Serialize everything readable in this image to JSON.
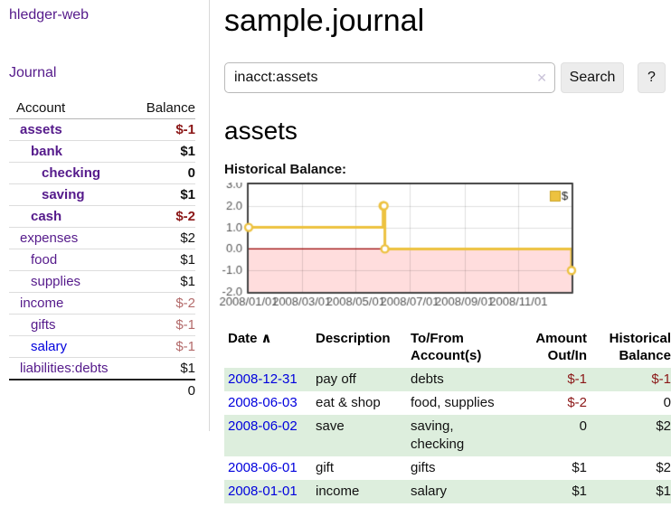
{
  "app": {
    "title": "hledger-web"
  },
  "sidebar": {
    "journal_link": "Journal",
    "accounts": {
      "header": {
        "account": "Account",
        "balance": "Balance"
      },
      "rows": [
        {
          "account": "assets",
          "indent": 1,
          "bold": true,
          "link_class": "purple",
          "balance": "$-1",
          "balance_class": "neg"
        },
        {
          "account": "bank",
          "indent": 2,
          "bold": true,
          "link_class": "purple",
          "balance": "$1",
          "balance_class": "pos"
        },
        {
          "account": "checking",
          "indent": 3,
          "bold": true,
          "link_class": "purple",
          "balance": "0",
          "balance_class": "pos"
        },
        {
          "account": "saving",
          "indent": 3,
          "bold": true,
          "link_class": "purple",
          "balance": "$1",
          "balance_class": "pos"
        },
        {
          "account": "cash",
          "indent": 2,
          "bold": true,
          "link_class": "purple",
          "balance": "$-2",
          "balance_class": "neg"
        },
        {
          "account": "expenses",
          "indent": 1,
          "bold": false,
          "link_class": "purple",
          "balance": "$2",
          "balance_class": "pos"
        },
        {
          "account": "food",
          "indent": 2,
          "bold": false,
          "link_class": "purple",
          "balance": "$1",
          "balance_class": "pos"
        },
        {
          "account": "supplies",
          "indent": 2,
          "bold": false,
          "link_class": "purple",
          "balance": "$1",
          "balance_class": "pos"
        },
        {
          "account": "income",
          "indent": 1,
          "bold": false,
          "link_class": "purple",
          "balance": "$-2",
          "balance_class": "neg-dim"
        },
        {
          "account": "gifts",
          "indent": 2,
          "bold": false,
          "link_class": "purple",
          "balance": "$-1",
          "balance_class": "neg-dim"
        },
        {
          "account": "salary",
          "indent": 2,
          "bold": false,
          "link_class": "blue",
          "balance": "$-1",
          "balance_class": "neg-dim"
        },
        {
          "account": "liabilities:debts",
          "indent": 1,
          "bold": false,
          "link_class": "purple",
          "balance": "$1",
          "balance_class": "pos"
        }
      ],
      "total": "0"
    }
  },
  "main": {
    "title": "sample.journal",
    "search": {
      "value": "inacct:assets",
      "clear_icon": "✕",
      "search_button": "Search",
      "help_button": "?"
    },
    "account_heading": "assets",
    "chart_label": "Historical Balance:",
    "register": {
      "columns": {
        "date": "Date",
        "description": "Description",
        "accounts": "To/From Account(s)",
        "amount": "Amount Out/In",
        "balance": "Historical Balance"
      },
      "sort_indicator": "∧",
      "rows": [
        {
          "date": "2008-12-31",
          "description": "pay off",
          "accounts": "debts",
          "amount": "$-1",
          "amount_class": "neg",
          "balance": "$-1",
          "balance_class": "neg",
          "stripe": true
        },
        {
          "date": "2008-06-03",
          "description": "eat & shop",
          "accounts": "food, supplies",
          "amount": "$-2",
          "amount_class": "neg",
          "balance": "0",
          "balance_class": "pos",
          "stripe": false
        },
        {
          "date": "2008-06-02",
          "description": "save",
          "accounts": "saving, checking",
          "amount": "0",
          "amount_class": "pos",
          "balance": "$2",
          "balance_class": "pos",
          "stripe": true
        },
        {
          "date": "2008-06-01",
          "description": "gift",
          "accounts": "gifts",
          "amount": "$1",
          "amount_class": "pos",
          "balance": "$2",
          "balance_class": "pos",
          "stripe": false
        },
        {
          "date": "2008-01-01",
          "description": "income",
          "accounts": "salary",
          "amount": "$1",
          "amount_class": "pos",
          "balance": "$1",
          "balance_class": "pos",
          "stripe": true
        }
      ]
    }
  },
  "chart_data": {
    "type": "line",
    "step": true,
    "title": "Historical Balance:",
    "ylabel": "",
    "xlabel": "",
    "ylim": [
      -2,
      3
    ],
    "y_ticks": [
      "3.0",
      "2.0",
      "1.0",
      "0.0",
      "-1.0",
      "-2.0"
    ],
    "x_range_days": [
      0,
      365
    ],
    "x_ticks": [
      {
        "label": "2008/01/01",
        "day": 0
      },
      {
        "label": "2008/03/01",
        "day": 60
      },
      {
        "label": "2008/05/01",
        "day": 121
      },
      {
        "label": "2008/07/01",
        "day": 182
      },
      {
        "label": "2008/09/01",
        "day": 244
      },
      {
        "label": "2008/11/01",
        "day": 305
      }
    ],
    "series": [
      {
        "name": "$",
        "color": "#edc240",
        "data": [
          {
            "date": "2008-01-01",
            "day": 0,
            "value": 1
          },
          {
            "date": "2008-06-01",
            "day": 152,
            "value": 2
          },
          {
            "date": "2008-06-02",
            "day": 153,
            "value": 2
          },
          {
            "date": "2008-06-03",
            "day": 154,
            "value": 0
          },
          {
            "date": "2008-12-31",
            "day": 365,
            "value": -1
          }
        ]
      }
    ],
    "legend": {
      "position": "top-right",
      "entries": [
        {
          "label": "$",
          "color": "#edc240"
        }
      ]
    },
    "markings": {
      "below_zero_fill": "#ffdddd",
      "zero_line_color": "#990000"
    },
    "grid": true
  },
  "colors": {
    "link_purple": "#551a8b",
    "link_blue": "#0000dd",
    "negative": "#8b1717",
    "negative_muted": "#b36a6a",
    "row_stripe_green": "#ddeedd",
    "chart_series": "#edc240",
    "chart_negative_region": "#ffdddd",
    "chart_zero_line": "#990000"
  }
}
